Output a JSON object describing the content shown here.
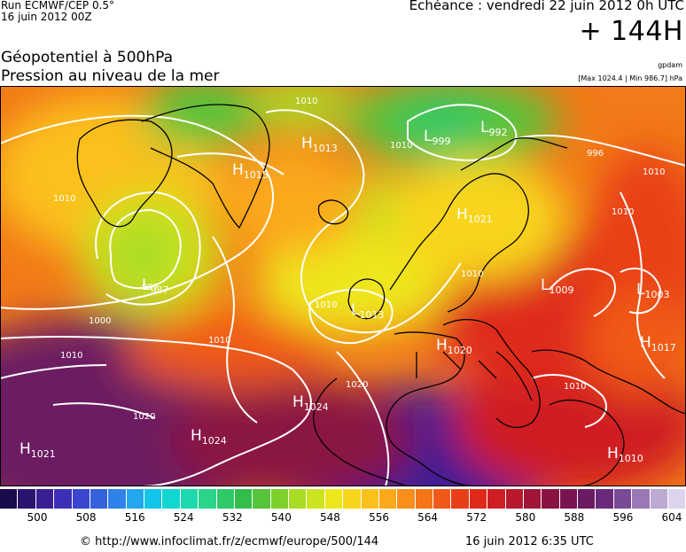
{
  "header": {
    "run": "Run ECMWF/CEP 0.5°",
    "run_date": "16 juin 2012 00Z",
    "echeance": "Echéance : vendredi 22 juin 2012 0h UTC",
    "step": "+ 144H",
    "title_line1": "Géopotentiel à 500hPa",
    "title_line2": "Pression au niveau de la mer",
    "gpdam": "gpdam",
    "max_min": "[Max 1024.4 | Min 986.7] hPa"
  },
  "map": {
    "pressure_centers": [
      {
        "id": "h-1013",
        "letter": "H",
        "value": "1013"
      },
      {
        "id": "h-1015",
        "letter": "H",
        "value": "1015"
      },
      {
        "id": "l-999",
        "letter": "L",
        "value": "999"
      },
      {
        "id": "l-992",
        "letter": "L",
        "value": "992"
      },
      {
        "id": "l-987",
        "letter": "L",
        "value": "987"
      },
      {
        "id": "l-1013",
        "letter": "L",
        "value": "1013"
      },
      {
        "id": "l-1009",
        "letter": "L",
        "value": "1009"
      },
      {
        "id": "l-1003",
        "letter": "L",
        "value": "1003"
      },
      {
        "id": "h-1020",
        "letter": "H",
        "value": "1020"
      },
      {
        "id": "h-1024-a",
        "letter": "H",
        "value": "1024"
      },
      {
        "id": "h-1024-b",
        "letter": "H",
        "value": "1024"
      },
      {
        "id": "h-1021",
        "letter": "H",
        "value": "1021"
      },
      {
        "id": "h-1010",
        "letter": "H",
        "value": "1010"
      },
      {
        "id": "h-1017",
        "letter": "H",
        "value": "1017"
      },
      {
        "id": "h-1021-b",
        "letter": "H",
        "value": "1021"
      }
    ],
    "isobar_labels": [
      "1010",
      "1010",
      "1010",
      "1000",
      "1010",
      "1010",
      "1020",
      "1020",
      "1010",
      "1010",
      "1010",
      "996",
      "1010",
      "1010",
      "987"
    ]
  },
  "colorbar": {
    "colors": [
      "#1a0b4d",
      "#2a1470",
      "#3a1f94",
      "#3b2fb8",
      "#3a46cf",
      "#3561dd",
      "#2f82e7",
      "#22a6ee",
      "#14c5ea",
      "#12d6d0",
      "#1dd9ad",
      "#2ad48a",
      "#2fc967",
      "#33bd4a",
      "#55c43a",
      "#7fd02d",
      "#a8dc25",
      "#cde31f",
      "#eee61d",
      "#f8d51d",
      "#fbc01c",
      "#fba91b",
      "#f98f1a",
      "#f57519",
      "#f05a18",
      "#e93f18",
      "#df2a1a",
      "#cf1f24",
      "#b8192e",
      "#a01538",
      "#8a1242",
      "#7a1450",
      "#6c1a62",
      "#6a2a7a",
      "#7a4a95",
      "#9a78b5",
      "#bcaad2",
      "#dcd4ec"
    ],
    "ticks": [
      "500",
      "508",
      "516",
      "524",
      "532",
      "540",
      "548",
      "556",
      "564",
      "572",
      "580",
      "588",
      "596",
      "604"
    ]
  },
  "footer": {
    "url": "© http://www.infoclimat.fr/z/ecmwf/europe/500/144",
    "time": "16 juin 2012  6:35 UTC"
  }
}
